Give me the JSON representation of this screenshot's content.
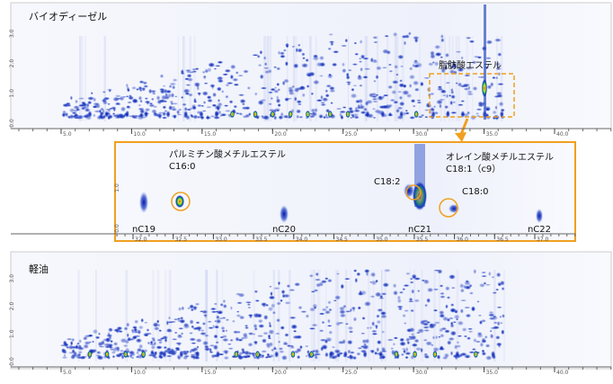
{
  "top_panel": {
    "label": "バイオディーゼル",
    "annotation": "脂肪酸エステル",
    "x_tick_labels": [
      "5.0",
      "10.0",
      "15.0",
      "20.0",
      "25.0",
      "30.0",
      "35.0",
      "40.0"
    ],
    "y_tick_labels": [
      "0.0",
      "1.0",
      "2.0",
      "3.0"
    ]
  },
  "zoom_panel": {
    "peaks": [
      "nC19",
      "nC20",
      "nC21",
      "nC22"
    ],
    "palmitic_name": "パルミチン酸メチルエステル",
    "palmitic_code": "C16:0",
    "oleic_name": "オレイン酸メチルエステル",
    "oleic_code": "C18:1（c9）",
    "linoleic_code": "C18:2",
    "stearic_code": "C18:0",
    "x_tick_labels": [
      "32.0",
      "32.5",
      "33.0",
      "33.5",
      "34.0",
      "34.5",
      "35.0",
      "35.5",
      "36.0",
      "36.5",
      "37.0"
    ],
    "y_tick_labels": [
      "0.0",
      "1.0"
    ]
  },
  "bottom_panel": {
    "label": "軽油",
    "x_tick_labels": [
      "5.0",
      "10.0",
      "15.0",
      "20.0",
      "25.0",
      "30.0",
      "35.0",
      "40.0"
    ],
    "y_tick_labels": [
      "0.0",
      "1.0",
      "2.0",
      "3.0"
    ]
  }
}
